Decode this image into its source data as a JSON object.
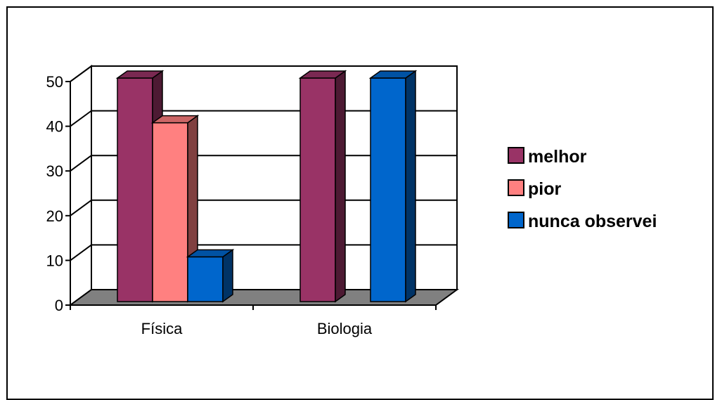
{
  "chart_data": {
    "type": "bar",
    "categories": [
      "Física",
      "Biologia"
    ],
    "series": [
      {
        "name": "melhor",
        "values": [
          50,
          50
        ],
        "color": "#993366",
        "side_color": "#4d1a33",
        "top_color": "#7a2952"
      },
      {
        "name": "pior",
        "values": [
          40,
          0
        ],
        "color": "#ff8080",
        "side_color": "#804040",
        "top_color": "#cc6666"
      },
      {
        "name": "nunca observei",
        "values": [
          10,
          50
        ],
        "color": "#0066cc",
        "side_color": "#003366",
        "top_color": "#0052a3"
      }
    ],
    "yticks": [
      "0",
      "10",
      "20",
      "30",
      "40",
      "50"
    ],
    "ylim": [
      0,
      50
    ],
    "grid": true,
    "legend": "right",
    "title": "",
    "xlabel": "",
    "ylabel": "",
    "floor_color": "#808080"
  }
}
